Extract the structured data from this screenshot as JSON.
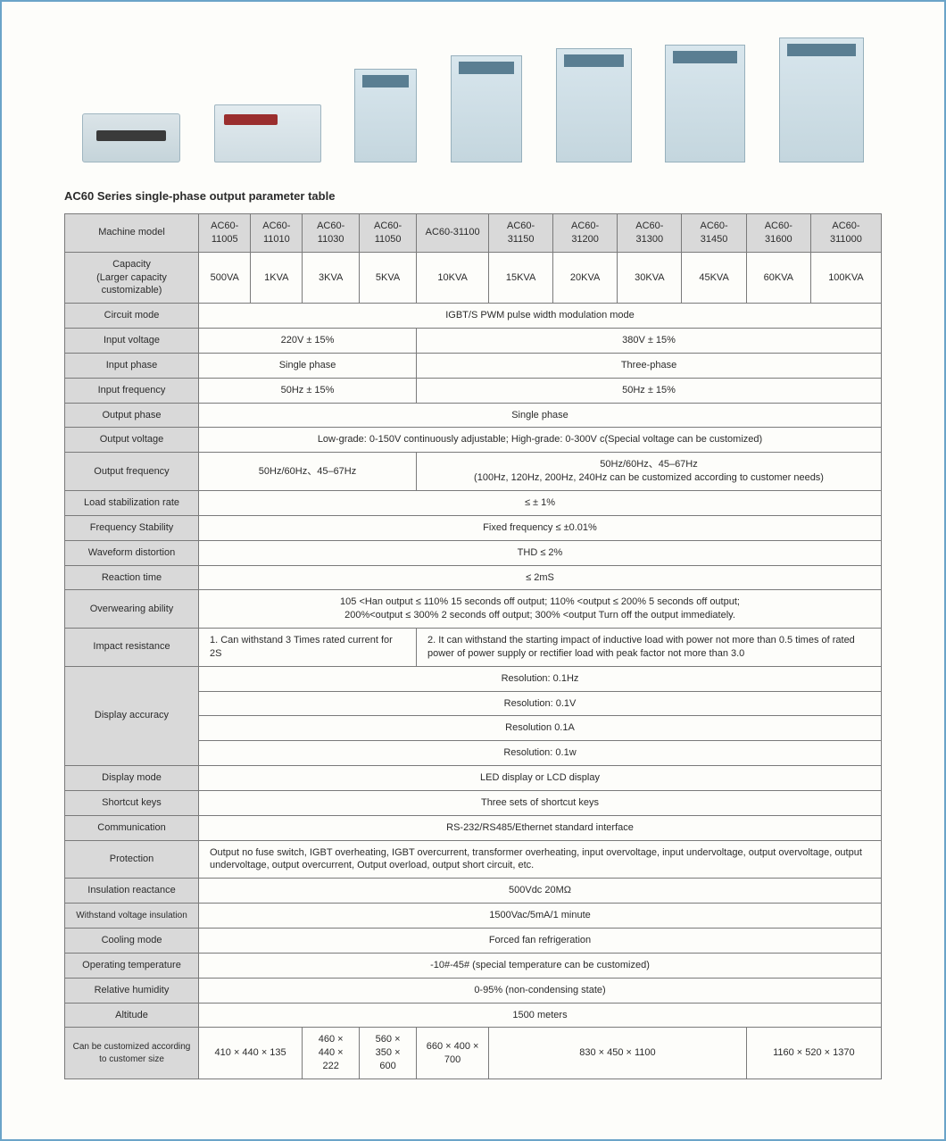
{
  "title": "AC60 Series single-phase output parameter table",
  "header_label": "Machine model",
  "models": [
    "AC60-11005",
    "AC60-11010",
    "AC60-11030",
    "AC60-11050",
    "AC60-31100",
    "AC60-31150",
    "AC60-31200",
    "AC60-31300",
    "AC60-31450",
    "AC60-31600",
    "AC60-311000"
  ],
  "rows": {
    "capacity_label": "Capacity\n(Larger capacity customizable)",
    "capacity": [
      "500VA",
      "1KVA",
      "3KVA",
      "5KVA",
      "10KVA",
      "15KVA",
      "20KVA",
      "30KVA",
      "45KVA",
      "60KVA",
      "100KVA"
    ],
    "circuit_mode_label": "Circuit mode",
    "circuit_mode": "IGBT/S PWM pulse width modulation mode",
    "input_voltage_label": "Input voltage",
    "input_voltage_a": "220V ± 15%",
    "input_voltage_b": "380V ± 15%",
    "input_phase_label": "Input phase",
    "input_phase_a": "Single phase",
    "input_phase_b": "Three-phase",
    "input_freq_label": "Input frequency",
    "input_freq_a": "50Hz ± 15%",
    "input_freq_b": "50Hz ± 15%",
    "output_phase_label": "Output phase",
    "output_phase": "Single phase",
    "output_voltage_label": "Output voltage",
    "output_voltage": "Low-grade: 0-150V continuously adjustable; High-grade: 0-300V c(Special voltage can be customized)",
    "output_freq_label": "Output frequency",
    "output_freq_a": "50Hz/60Hz、45–67Hz",
    "output_freq_b": "50Hz/60Hz、45–67Hz\n(100Hz, 120Hz, 200Hz, 240Hz can be customized according to customer needs)",
    "load_stab_label": "Load stabilization rate",
    "load_stab": "≤ ± 1%",
    "freq_stab_label": "Frequency Stability",
    "freq_stab": "Fixed frequency ≤ ±0.01%",
    "waveform_label": "Waveform distortion",
    "waveform": "THD ≤ 2%",
    "reaction_label": "Reaction time",
    "reaction": "≤ 2mS",
    "overwearing_label": "Overwearing ability",
    "overwearing": "105 <Han output ≤ 110% 15 seconds off output; 110% <output ≤ 200% 5 seconds off output;\n200%<output ≤ 300% 2 seconds off output; 300% <output Turn off the output immediately.",
    "impact_label": "Impact resistance",
    "impact_a": "1. Can withstand 3 Times rated current for 2S",
    "impact_b": "2. It can withstand the starting impact of inductive load with power not more than 0.5 times of rated power of power supply or rectifier load with peak factor not more than 3.0",
    "disp_acc_label": "Display accuracy",
    "disp_acc_1": "Resolution: 0.1Hz",
    "disp_acc_2": "Resolution: 0.1V",
    "disp_acc_3": "Resolution 0.1A",
    "disp_acc_4": "Resolution: 0.1w",
    "display_mode_label": "Display mode",
    "display_mode": "LED display or LCD display",
    "shortcut_label": "Shortcut keys",
    "shortcut": "Three sets of shortcut keys",
    "comm_label": "Communication",
    "comm": "RS-232/RS485/Ethernet standard interface",
    "protection_label": "Protection",
    "protection": "Output no fuse switch, IGBT overheating, IGBT overcurrent, transformer overheating, input overvoltage, input undervoltage, output overvoltage, output undervoltage, output overcurrent, Output overload, output short circuit, etc.",
    "insulation_label": "Insulation reactance",
    "insulation": "500Vdc 20MΩ",
    "withstand_label": "Withstand voltage insulation",
    "withstand": "1500Vac/5mA/1 minute",
    "cooling_label": "Cooling mode",
    "cooling": "Forced fan refrigeration",
    "optemp_label": "Operating temperature",
    "optemp": "-10#-45# (special temperature can be customized)",
    "humidity_label": "Relative humidity",
    "humidity": "0-95% (non-condensing state)",
    "altitude_label": "Altitude",
    "altitude": "1500 meters",
    "size_label": "Can be customized according to customer size",
    "size_a": "410 × 440 × 135",
    "size_b": "460 × 440 × 222",
    "size_c": "560 × 350 × 600",
    "size_d": "660 × 400 × 700",
    "size_e": "830 × 450 × 1100",
    "size_f": "1160 × 520 × 1370"
  },
  "colors": {
    "border": "#6ba4c8",
    "header_bg": "#d9d9d9",
    "cell_border": "#7a7a7a",
    "text": "#2b2b2b",
    "page_bg": "#fdfdfa"
  }
}
